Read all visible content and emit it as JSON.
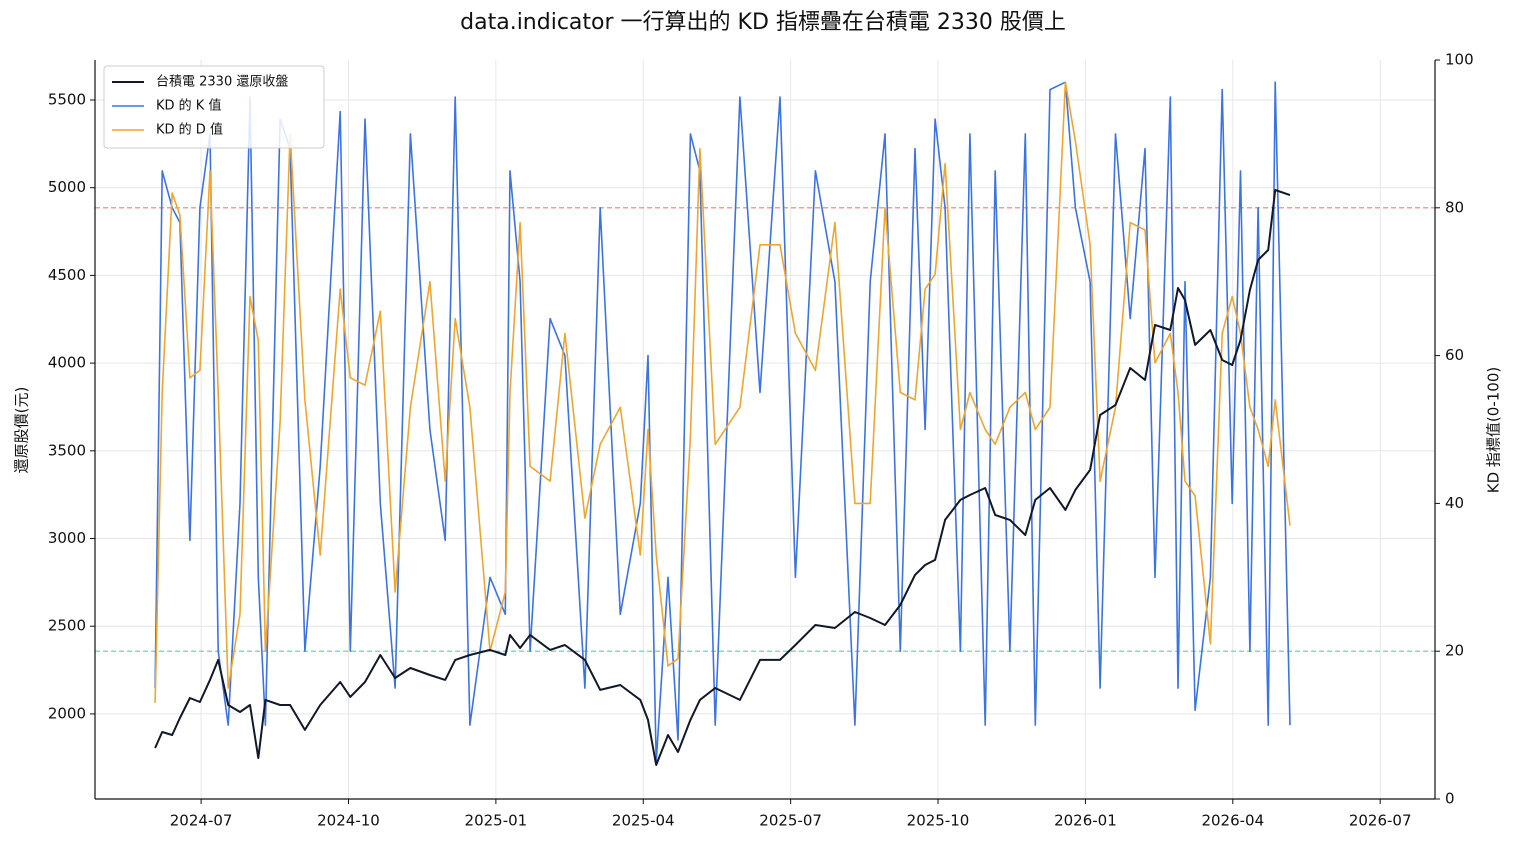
{
  "chart_data": {
    "type": "line",
    "title": "data.indicator 一行算出的 KD 指標疊在台積電 2330 股價上",
    "ylabel": "還原股價(元)",
    "y2label": "KD 指標值(0-100)",
    "x": [
      2024.422,
      2024.434,
      2024.451,
      2024.464,
      2024.481,
      2024.498,
      2024.515,
      2024.529,
      2024.546,
      2024.566,
      2024.583,
      2024.597,
      2024.609,
      2024.634,
      2024.651,
      2024.676,
      2024.702,
      2024.736,
      2024.753,
      2024.778,
      2024.804,
      2024.829,
      2024.855,
      2024.888,
      2024.914,
      2024.931,
      2024.956,
      2024.99,
      2025.016,
      2025.024,
      2025.041,
      2025.058,
      2025.092,
      2025.117,
      2025.151,
      2025.177,
      2025.211,
      2025.245,
      2025.258,
      2025.272,
      2025.292,
      2025.309,
      2025.33,
      2025.346,
      2025.372,
      2025.414,
      2025.448,
      2025.482,
      2025.508,
      2025.542,
      2025.575,
      2025.609,
      2025.635,
      2025.66,
      2025.686,
      2025.711,
      2025.728,
      2025.745,
      2025.762,
      2025.788,
      2025.804,
      2025.83,
      2025.847,
      2025.872,
      2025.898,
      2025.915,
      2025.94,
      2025.966,
      2025.983,
      2026.008,
      2026.025,
      2026.051,
      2026.076,
      2026.101,
      2026.118,
      2026.144,
      2026.157,
      2026.169,
      2026.186,
      2026.212,
      2026.232,
      2026.249,
      2026.263,
      2026.279,
      2026.293,
      2026.31,
      2026.322,
      2026.347
    ],
    "series": [
      {
        "name": "台積電 2330 還原收盤",
        "color": "#111827",
        "width": 2,
        "values": [
          1806,
          1897,
          1880,
          1977,
          2091,
          2068,
          2194,
          2308,
          2051,
          2011,
          2051,
          1749,
          2080,
          2051,
          2051,
          1909,
          2051,
          2182,
          2097,
          2182,
          2336,
          2205,
          2262,
          2222,
          2194,
          2308,
          2336,
          2365,
          2336,
          2450,
          2376,
          2450,
          2365,
          2393,
          2308,
          2137,
          2165,
          2080,
          1966,
          1709,
          1880,
          1783,
          1966,
          2080,
          2148,
          2080,
          2308,
          2308,
          2393,
          2507,
          2490,
          2581,
          2547,
          2507,
          2621,
          2792,
          2849,
          2878,
          3106,
          3220,
          3248,
          3288,
          3134,
          3106,
          3020,
          3220,
          3288,
          3163,
          3277,
          3391,
          3704,
          3761,
          3972,
          3904,
          4218,
          4189,
          4428,
          4360,
          4104,
          4189,
          4018,
          3989,
          4132,
          4417,
          4588,
          4645,
          4987,
          4958
        ]
      },
      {
        "name": "KD 的 K 值",
        "color": "#3b74e0",
        "width": 1.6,
        "axis": "y2",
        "values": [
          15,
          85,
          80,
          78,
          35,
          80,
          90,
          20,
          10,
          40,
          95,
          30,
          10,
          92,
          88,
          20,
          45,
          93,
          20,
          92,
          40,
          15,
          90,
          50,
          35,
          95,
          10,
          30,
          25,
          85,
          70,
          20,
          65,
          60,
          15,
          80,
          25,
          40,
          60,
          5,
          30,
          8,
          90,
          85,
          10,
          95,
          55,
          95,
          30,
          85,
          70,
          10,
          70,
          90,
          20,
          88,
          50,
          92,
          80,
          20,
          90,
          10,
          85,
          20,
          90,
          10,
          96,
          97,
          80,
          70,
          15,
          90,
          65,
          88,
          30,
          95,
          15,
          70,
          12,
          30,
          96,
          40,
          85,
          20,
          80,
          10,
          97,
          10
        ]
      },
      {
        "name": "KD 的 D 值",
        "color": "#f0a530",
        "width": 1.6,
        "axis": "y2",
        "values": [
          13,
          55,
          82,
          79,
          57,
          58,
          85,
          55,
          15,
          25,
          68,
          62,
          20,
          51,
          90,
          54,
          33,
          69,
          57,
          56,
          66,
          28,
          53,
          70,
          43,
          65,
          53,
          20,
          28,
          55,
          78,
          45,
          43,
          63,
          38,
          48,
          53,
          33,
          50,
          33,
          18,
          19,
          49,
          88,
          48,
          53,
          75,
          75,
          63,
          58,
          78,
          40,
          40,
          80,
          55,
          54,
          69,
          71,
          86,
          50,
          55,
          50,
          48,
          53,
          55,
          50,
          53,
          97,
          89,
          75,
          43,
          53,
          78,
          77,
          59,
          63,
          55,
          43,
          41,
          21,
          63,
          68,
          63,
          53,
          50,
          45,
          54,
          37
        ]
      }
    ],
    "hlines": [
      {
        "value": 80,
        "color": "#e8806f"
      },
      {
        "value": 20,
        "color": "#5fd0a8"
      }
    ],
    "xlim": [
      2024.32,
      2026.593
    ],
    "xticks": [
      {
        "value": 2024.5,
        "label": "2024-07"
      },
      {
        "value": 2024.75,
        "label": "2024-10"
      },
      {
        "value": 2025.0,
        "label": "2025-01"
      },
      {
        "value": 2025.25,
        "label": "2025-04"
      },
      {
        "value": 2025.5,
        "label": "2025-07"
      },
      {
        "value": 2025.75,
        "label": "2025-10"
      },
      {
        "value": 2026.0,
        "label": "2026-01"
      },
      {
        "value": 2026.25,
        "label": "2026-04"
      },
      {
        "value": 2026.5,
        "label": "2026-07"
      }
    ],
    "ylim": [
      1515,
      5728
    ],
    "yticks": [
      2000,
      2500,
      3000,
      3500,
      4000,
      4500,
      5000,
      5500
    ],
    "y2lim": [
      0,
      100
    ],
    "y2ticks": [
      0,
      20,
      40,
      60,
      80,
      100
    ],
    "grid": true,
    "legend": "upper left"
  }
}
